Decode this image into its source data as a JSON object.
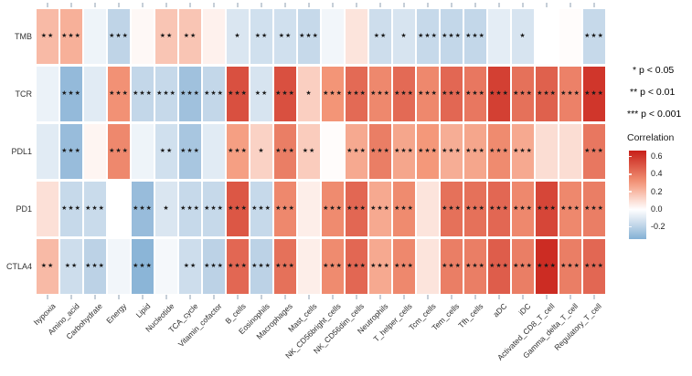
{
  "chart_data": {
    "type": "heatmap",
    "rows": [
      "TMB",
      "TCR",
      "PDL1",
      "PD1",
      "CTLA4"
    ],
    "columns": [
      "hypoxia",
      "Amino_acid",
      "Carbohydrate",
      "Energy",
      "Lipid",
      "Nucleotide",
      "TCA_cycle",
      "Vitamin_cofactor",
      "B_cells",
      "Eosinophils",
      "Macrophages",
      "Mast_cells",
      "NK_CD56bright_cells",
      "NK_CD56dim_cells",
      "Neutrophils",
      "T_helper_cells",
      "Tcm_cells",
      "Tem_cells",
      "Tfh_cells",
      "aDC",
      "iDC",
      "Activated_CD8_T_cell",
      "Gamma_delta_T_cell",
      "Regulatory_T_cell"
    ],
    "series": [
      {
        "name": "TMB",
        "values": [
          0.2,
          0.23,
          -0.05,
          -0.19,
          0.02,
          0.17,
          0.17,
          0.04,
          -0.11,
          -0.14,
          -0.14,
          -0.17,
          -0.04,
          0.08,
          -0.15,
          -0.12,
          -0.17,
          -0.18,
          -0.18,
          -0.08,
          -0.12,
          0.0,
          0.01,
          -0.17
        ],
        "sig": [
          "**",
          "***",
          "",
          "***",
          "",
          "**",
          "**",
          "",
          "*",
          "**",
          "**",
          "***",
          "",
          "",
          "**",
          "*",
          "***",
          "***",
          "***",
          "",
          "*",
          "",
          "",
          "***"
        ]
      },
      {
        "name": "TCR",
        "values": [
          -0.06,
          -0.3,
          -0.09,
          0.32,
          -0.18,
          -0.17,
          -0.27,
          -0.18,
          0.52,
          -0.12,
          0.52,
          0.14,
          0.31,
          0.44,
          0.35,
          0.44,
          0.35,
          0.45,
          0.4,
          0.57,
          0.42,
          0.47,
          0.37,
          0.6
        ],
        "sig": [
          "",
          "***",
          "",
          "***",
          "***",
          "***",
          "***",
          "***",
          "***",
          "**",
          "***",
          "*",
          "***",
          "***",
          "***",
          "***",
          "***",
          "***",
          "***",
          "***",
          "***",
          "***",
          "***",
          "***"
        ]
      },
      {
        "name": "PDL1",
        "values": [
          -0.09,
          -0.29,
          0.03,
          0.35,
          -0.05,
          -0.14,
          -0.25,
          -0.09,
          0.28,
          0.13,
          0.38,
          0.15,
          0.01,
          0.25,
          0.38,
          0.26,
          0.3,
          0.24,
          0.26,
          0.34,
          0.25,
          0.1,
          0.1,
          0.4
        ],
        "sig": [
          "",
          "***",
          "",
          "***",
          "",
          "**",
          "***",
          "",
          "***",
          "*",
          "***",
          "**",
          "",
          "***",
          "***",
          "***",
          "***",
          "***",
          "***",
          "***",
          "***",
          "",
          "",
          "***"
        ]
      },
      {
        "name": "PD1",
        "values": [
          0.09,
          -0.17,
          -0.16,
          0.0,
          -0.29,
          -0.11,
          -0.17,
          -0.17,
          0.5,
          -0.17,
          0.35,
          0.05,
          0.34,
          0.45,
          0.25,
          0.34,
          0.08,
          0.42,
          0.42,
          0.45,
          0.35,
          0.55,
          0.35,
          0.38
        ],
        "sig": [
          "",
          "***",
          "***",
          "",
          "***",
          "*",
          "***",
          "***",
          "***",
          "***",
          "***",
          "",
          "***",
          "***",
          "***",
          "***",
          "",
          "***",
          "***",
          "***",
          "***",
          "***",
          "***",
          "***"
        ]
      },
      {
        "name": "CTLA4",
        "values": [
          0.2,
          -0.15,
          -0.2,
          -0.04,
          -0.32,
          -0.03,
          -0.15,
          -0.2,
          0.45,
          -0.2,
          0.42,
          0.05,
          0.34,
          0.45,
          0.25,
          0.35,
          0.08,
          0.38,
          0.38,
          0.48,
          0.38,
          0.63,
          0.38,
          0.45
        ],
        "sig": [
          "**",
          "**",
          "***",
          "",
          "***",
          "",
          "**",
          "***",
          "***",
          "***",
          "***",
          "",
          "***",
          "***",
          "***",
          "***",
          "",
          "***",
          "***",
          "***",
          "***",
          "***",
          "***",
          "***"
        ]
      }
    ],
    "legend": {
      "significance": [
        "* p < 0.05",
        "** p < 0.01",
        "*** p < 0.001"
      ],
      "colorbar": {
        "title": "Correlation",
        "ticks": [
          0.6,
          0.4,
          0.2,
          0.0,
          -0.2
        ],
        "domain_top": 0.67,
        "domain_bottom": -0.34
      }
    },
    "palette": {
      "max_red": "#c61c16",
      "mid_salmon": "#f4987a",
      "zero_white": "#ffffff",
      "mid_blue": "#bcd2e6",
      "min_blue": "#6ba2cd",
      "star_color": "#1a1a1a",
      "axis_tick_color": "#c6cfd8"
    }
  }
}
